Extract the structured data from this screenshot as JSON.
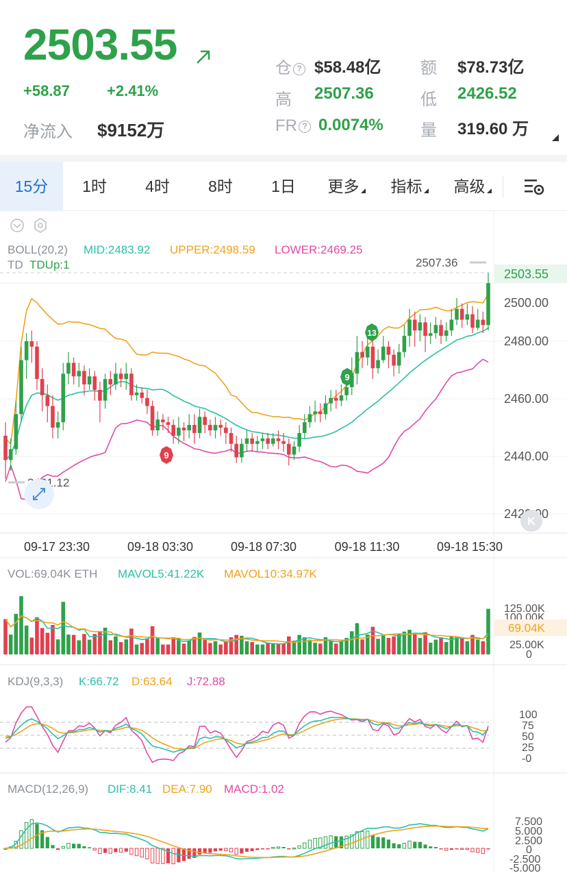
{
  "header": {
    "price": "2503.55",
    "change": "+58.87",
    "change_pct": "+2.41%",
    "net_inflow_label": "净流入",
    "net_inflow_value": "$9152万",
    "stats": {
      "position_label": "仓",
      "position_value": "$58.48亿",
      "amount_label": "额",
      "amount_value": "$78.73亿",
      "high_label": "高",
      "high_value": "2507.36",
      "low_label": "低",
      "low_value": "2426.52",
      "fr_label": "FR",
      "fr_value": "0.0074%",
      "volume_label": "量",
      "volume_value": "319.60 万"
    },
    "up_color": "#2fa14a",
    "down_color": "#e0414f"
  },
  "tabs": [
    {
      "label": "15分",
      "active": true
    },
    {
      "label": "1时",
      "active": false
    },
    {
      "label": "4时",
      "active": false
    },
    {
      "label": "8时",
      "active": false
    },
    {
      "label": "1日",
      "active": false
    },
    {
      "label": "更多",
      "active": false
    },
    {
      "label": "指标",
      "active": false
    },
    {
      "label": "高级",
      "active": false
    }
  ],
  "legends": {
    "boll_name": "BOLL(20,2)",
    "boll_mid": "MID:2483.92",
    "boll_upper": "UPPER:2498.59",
    "boll_lower": "LOWER:2469.25",
    "td_name": "TD",
    "td_value": "TDUp:1",
    "vol_name": "VOL:69.04K ETH",
    "vol_ma5": "MAVOL5:41.22K",
    "vol_ma10": "MAVOL10:34.97K",
    "kdj_name": "KDJ(9,3,3)",
    "kdj_k": "K:66.72",
    "kdj_d": "D:63.64",
    "kdj_j": "J:72.88",
    "macd_name": "MACD(12,26,9)",
    "macd_dif": "DIF:8.41",
    "macd_dea": "DEA:7.90",
    "macd_macd": "MACD:1.02"
  },
  "chart_data": {
    "type": "candlestick",
    "price_axis": [
      "2500.00",
      "2480.00",
      "2460.00",
      "2440.00",
      "2420.00"
    ],
    "price_ylim": [
      2416,
      2515
    ],
    "last_price": "2503.55",
    "max_marker": "2507.36",
    "min_marker": "2431.12",
    "time_axis": [
      "09-17 23:30",
      "09-18 03:30",
      "09-18 07:30",
      "09-18 11:30",
      "09-18 15:30"
    ],
    "td_marks": [
      "9",
      "9",
      "13"
    ],
    "vol_axis": [
      "125.00K",
      "100.00K",
      "25.00K",
      "0"
    ],
    "vol_last": "69.04K",
    "kdj_axis": [
      "100",
      "75",
      "50",
      "25",
      "-0"
    ],
    "macd_axis": [
      "7.500",
      "5.000",
      "2.500",
      "0",
      "-2.500",
      "-5.000"
    ],
    "candles": [
      [
        2447,
        2438,
        2452,
        2431.12
      ],
      [
        2438,
        2442,
        2446,
        2434
      ],
      [
        2442,
        2455,
        2460,
        2440
      ],
      [
        2455,
        2475,
        2480,
        2452
      ],
      [
        2475,
        2482,
        2485,
        2468
      ],
      [
        2482,
        2480,
        2486,
        2474
      ],
      [
        2480,
        2468,
        2482,
        2464
      ],
      [
        2468,
        2462,
        2472,
        2456
      ],
      [
        2462,
        2458,
        2466,
        2452
      ],
      [
        2458,
        2450,
        2462,
        2446
      ],
      [
        2450,
        2452,
        2456,
        2446
      ],
      [
        2452,
        2470,
        2474,
        2449
      ],
      [
        2470,
        2474,
        2478,
        2466
      ],
      [
        2474,
        2469,
        2476,
        2466
      ],
      [
        2469,
        2471,
        2474,
        2465
      ],
      [
        2471,
        2466,
        2473,
        2462
      ],
      [
        2466,
        2469,
        2472,
        2464
      ],
      [
        2469,
        2464,
        2471,
        2460
      ],
      [
        2464,
        2460,
        2467,
        2452
      ],
      [
        2460,
        2468,
        2470,
        2457
      ],
      [
        2468,
        2466,
        2471,
        2462
      ],
      [
        2466,
        2470,
        2474,
        2464
      ],
      [
        2470,
        2468,
        2472,
        2465
      ],
      [
        2468,
        2470,
        2474,
        2464
      ],
      [
        2470,
        2462,
        2472,
        2460
      ],
      [
        2462,
        2463,
        2466,
        2460
      ],
      [
        2463,
        2461,
        2465,
        2459
      ],
      [
        2461,
        2458,
        2464,
        2455
      ],
      [
        2458,
        2449,
        2460,
        2447
      ],
      [
        2449,
        2453,
        2456,
        2447
      ],
      [
        2453,
        2452,
        2455,
        2449
      ],
      [
        2452,
        2451,
        2454,
        2448
      ],
      [
        2451,
        2447,
        2453,
        2444
      ],
      [
        2447,
        2450,
        2454,
        2444
      ],
      [
        2450,
        2449,
        2452,
        2445
      ],
      [
        2449,
        2451,
        2455,
        2446
      ],
      [
        2451,
        2448,
        2455,
        2444
      ],
      [
        2448,
        2454,
        2457,
        2446
      ],
      [
        2454,
        2451,
        2456,
        2448
      ],
      [
        2451,
        2449,
        2453,
        2447
      ],
      [
        2449,
        2451,
        2454,
        2446
      ],
      [
        2451,
        2450,
        2453,
        2447
      ],
      [
        2450,
        2448,
        2452,
        2444
      ],
      [
        2448,
        2444,
        2450,
        2441
      ],
      [
        2444,
        2439,
        2447,
        2437
      ],
      [
        2439,
        2444,
        2446,
        2437
      ],
      [
        2444,
        2446,
        2449,
        2441
      ],
      [
        2446,
        2444,
        2448,
        2441
      ],
      [
        2444,
        2445,
        2447,
        2441
      ],
      [
        2445,
        2446,
        2448,
        2442
      ],
      [
        2446,
        2444,
        2448,
        2442
      ],
      [
        2444,
        2446,
        2448,
        2443
      ],
      [
        2446,
        2445,
        2449,
        2442
      ],
      [
        2445,
        2444,
        2448,
        2441
      ],
      [
        2444,
        2440,
        2446,
        2436
      ],
      [
        2440,
        2443,
        2445,
        2438
      ],
      [
        2443,
        2448,
        2451,
        2441
      ],
      [
        2448,
        2452,
        2455,
        2446
      ],
      [
        2452,
        2455,
        2458,
        2450
      ],
      [
        2455,
        2456,
        2460,
        2452
      ],
      [
        2456,
        2455,
        2459,
        2452
      ],
      [
        2455,
        2459,
        2462,
        2453
      ],
      [
        2459,
        2461,
        2464,
        2456
      ],
      [
        2461,
        2460,
        2464,
        2457
      ],
      [
        2460,
        2462,
        2466,
        2458
      ],
      [
        2462,
        2465,
        2470,
        2460
      ],
      [
        2465,
        2470,
        2476,
        2462
      ],
      [
        2470,
        2478,
        2484,
        2466
      ],
      [
        2478,
        2476,
        2482,
        2472
      ],
      [
        2476,
        2480,
        2485,
        2473
      ],
      [
        2480,
        2472,
        2482,
        2468
      ],
      [
        2472,
        2475,
        2479,
        2470
      ],
      [
        2475,
        2480,
        2484,
        2474
      ],
      [
        2480,
        2477,
        2482,
        2472
      ],
      [
        2477,
        2473,
        2479,
        2469
      ],
      [
        2473,
        2478,
        2481,
        2470
      ],
      [
        2478,
        2484,
        2488,
        2476
      ],
      [
        2484,
        2490,
        2494,
        2480
      ],
      [
        2490,
        2486,
        2493,
        2480
      ],
      [
        2486,
        2489,
        2492,
        2482
      ],
      [
        2489,
        2484,
        2491,
        2478
      ],
      [
        2484,
        2485,
        2489,
        2481
      ],
      [
        2485,
        2488,
        2491,
        2483
      ],
      [
        2488,
        2484,
        2490,
        2481
      ],
      [
        2484,
        2486,
        2489,
        2482
      ],
      [
        2486,
        2490,
        2494,
        2484
      ],
      [
        2490,
        2494,
        2498,
        2488
      ],
      [
        2494,
        2490,
        2496,
        2487
      ],
      [
        2490,
        2492,
        2496,
        2488
      ],
      [
        2492,
        2487,
        2495,
        2485
      ],
      [
        2487,
        2490,
        2494,
        2486
      ],
      [
        2490,
        2488,
        2493,
        2485
      ],
      [
        2488,
        2503.55,
        2507.36,
        2486
      ]
    ]
  }
}
